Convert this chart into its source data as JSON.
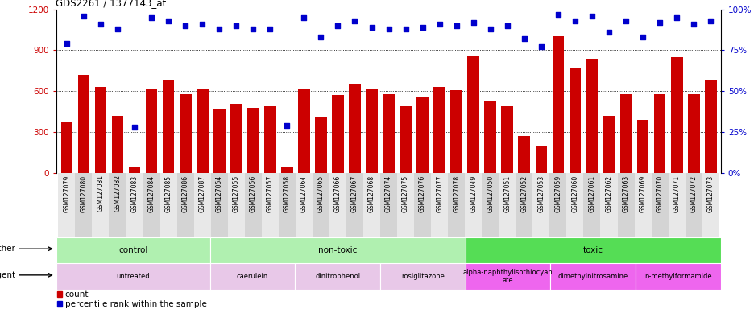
{
  "title": "GDS2261 / 1377143_at",
  "samples": [
    "GSM127079",
    "GSM127080",
    "GSM127081",
    "GSM127082",
    "GSM127083",
    "GSM127084",
    "GSM127085",
    "GSM127086",
    "GSM127087",
    "GSM127054",
    "GSM127055",
    "GSM127056",
    "GSM127057",
    "GSM127058",
    "GSM127064",
    "GSM127065",
    "GSM127066",
    "GSM127067",
    "GSM127068",
    "GSM127074",
    "GSM127075",
    "GSM127076",
    "GSM127077",
    "GSM127078",
    "GSM127049",
    "GSM127050",
    "GSM127051",
    "GSM127052",
    "GSM127053",
    "GSM127059",
    "GSM127060",
    "GSM127061",
    "GSM127062",
    "GSM127063",
    "GSM127069",
    "GSM127070",
    "GSM127071",
    "GSM127072",
    "GSM127073"
  ],
  "counts": [
    370,
    720,
    630,
    420,
    40,
    620,
    680,
    580,
    620,
    470,
    510,
    480,
    490,
    50,
    620,
    410,
    570,
    650,
    620,
    580,
    490,
    560,
    630,
    610,
    860,
    530,
    490,
    270,
    200,
    1000,
    770,
    840,
    420,
    580,
    390,
    580,
    850,
    580,
    680
  ],
  "percentiles": [
    79,
    96,
    91,
    88,
    28,
    95,
    93,
    90,
    91,
    88,
    90,
    88,
    88,
    29,
    95,
    83,
    90,
    93,
    89,
    88,
    88,
    89,
    91,
    90,
    92,
    88,
    90,
    82,
    77,
    97,
    93,
    96,
    86,
    93,
    83,
    92,
    95,
    91,
    93
  ],
  "bar_color": "#cc0000",
  "dot_color": "#0000cc",
  "ylim_left": [
    0,
    1200
  ],
  "ylim_right": [
    0,
    100
  ],
  "yticks_left": [
    0,
    300,
    600,
    900,
    1200
  ],
  "yticks_right": [
    0,
    25,
    50,
    75,
    100
  ],
  "grid_values": [
    300,
    600,
    900
  ],
  "other_spans": [
    {
      "label": "control",
      "start": 0,
      "end": 9,
      "color": "#b0f0b0"
    },
    {
      "label": "non-toxic",
      "start": 9,
      "end": 24,
      "color": "#b0f0b0"
    },
    {
      "label": "toxic",
      "start": 24,
      "end": 39,
      "color": "#55dd55"
    }
  ],
  "agent_spans": [
    {
      "label": "untreated",
      "start": 0,
      "end": 9,
      "color": "#e8c8e8"
    },
    {
      "label": "caerulein",
      "start": 9,
      "end": 14,
      "color": "#e8c8e8"
    },
    {
      "label": "dinitrophenol",
      "start": 14,
      "end": 19,
      "color": "#e8c8e8"
    },
    {
      "label": "rosiglitazone",
      "start": 19,
      "end": 24,
      "color": "#e8c8e8"
    },
    {
      "label": "alpha-naphthylisothiocyan\nate",
      "start": 24,
      "end": 29,
      "color": "#ee66ee"
    },
    {
      "label": "dimethylnitrosamine",
      "start": 29,
      "end": 34,
      "color": "#ee66ee"
    },
    {
      "label": "n-methylformamide",
      "start": 34,
      "end": 39,
      "color": "#ee66ee"
    }
  ],
  "bg_even": "#e8e8e8",
  "bg_odd": "#d4d4d4"
}
